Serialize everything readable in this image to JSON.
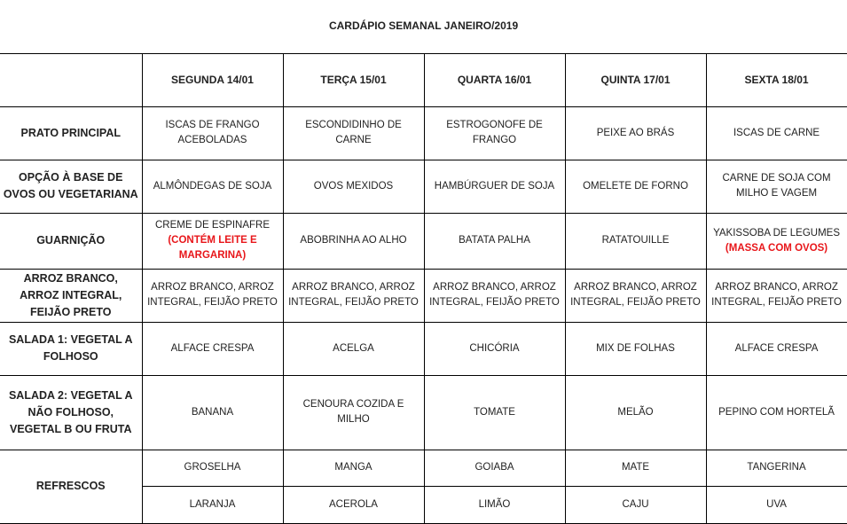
{
  "title": "CARDÁPIO SEMANAL JANEIRO/2019",
  "days": [
    "SEGUNDA   14/01",
    "TERÇA 15/01",
    "QUARTA 16/01",
    "QUINTA 17/01",
    "SEXTA 18/01"
  ],
  "note_color": "#e8161a",
  "rows": [
    {
      "label": "PRATO PRINCIPAL",
      "cells": [
        {
          "text": "ISCAS DE FRANGO ACEBOLADAS"
        },
        {
          "text": "ESCONDIDINHO DE CARNE"
        },
        {
          "text": "ESTROGONOFE DE FRANGO"
        },
        {
          "text": "PEIXE AO BRÁS"
        },
        {
          "text": "ISCAS DE CARNE"
        }
      ]
    },
    {
      "label": "OPÇÃO À BASE DE OVOS OU VEGETARIANA",
      "cells": [
        {
          "text": "ALMÔNDEGAS DE SOJA"
        },
        {
          "text": "OVOS MEXIDOS"
        },
        {
          "text": "HAMBÚRGUER DE SOJA"
        },
        {
          "text": "OMELETE DE FORNO"
        },
        {
          "text": "CARNE DE SOJA COM MILHO E VAGEM"
        }
      ]
    },
    {
      "label": "GUARNIÇÃO",
      "cells": [
        {
          "text": "CREME DE ESPINAFRE",
          "note": "(CONTÉM LEITE E MARGARINA)"
        },
        {
          "text": "ABOBRINHA AO ALHO"
        },
        {
          "text": "BATATA PALHA"
        },
        {
          "text": "RATATOUILLE"
        },
        {
          "text": "YAKISSOBA DE LEGUMES",
          "note": "(MASSA COM OVOS)"
        }
      ]
    },
    {
      "label": "ARROZ BRANCO, ARROZ INTEGRAL, FEIJÃO PRETO",
      "cells": [
        {
          "text": "ARROZ BRANCO, ARROZ INTEGRAL, FEIJÃO PRETO"
        },
        {
          "text": "ARROZ BRANCO, ARROZ INTEGRAL, FEIJÃO PRETO"
        },
        {
          "text": "ARROZ BRANCO, ARROZ INTEGRAL, FEIJÃO PRETO"
        },
        {
          "text": "ARROZ BRANCO, ARROZ INTEGRAL, FEIJÃO PRETO"
        },
        {
          "text": "ARROZ BRANCO, ARROZ INTEGRAL, FEIJÃO PRETO"
        }
      ]
    },
    {
      "label": "SALADA 1: VEGETAL A FOLHOSO",
      "cells": [
        {
          "text": "ALFACE CRESPA"
        },
        {
          "text": "ACELGA"
        },
        {
          "text": "CHICÓRIA"
        },
        {
          "text": "MIX DE FOLHAS"
        },
        {
          "text": "ALFACE CRESPA"
        }
      ]
    },
    {
      "label": "SALADA 2: VEGETAL A NÃO FOLHOSO, VEGETAL B OU FRUTA",
      "cells": [
        {
          "text": "BANANA"
        },
        {
          "text": "CENOURA COZIDA E MILHO"
        },
        {
          "text": "TOMATE"
        },
        {
          "text": "MELÃO"
        },
        {
          "text": "PEPINO COM HORTELÃ"
        }
      ]
    }
  ],
  "refrescos": {
    "label": "REFRESCOS",
    "line1": [
      "GROSELHA",
      "MANGA",
      "GOIABA",
      "MATE",
      "TANGERINA"
    ],
    "line2": [
      "LARANJA",
      "ACEROLA",
      "LIMÃO",
      "CAJU",
      "UVA"
    ]
  }
}
